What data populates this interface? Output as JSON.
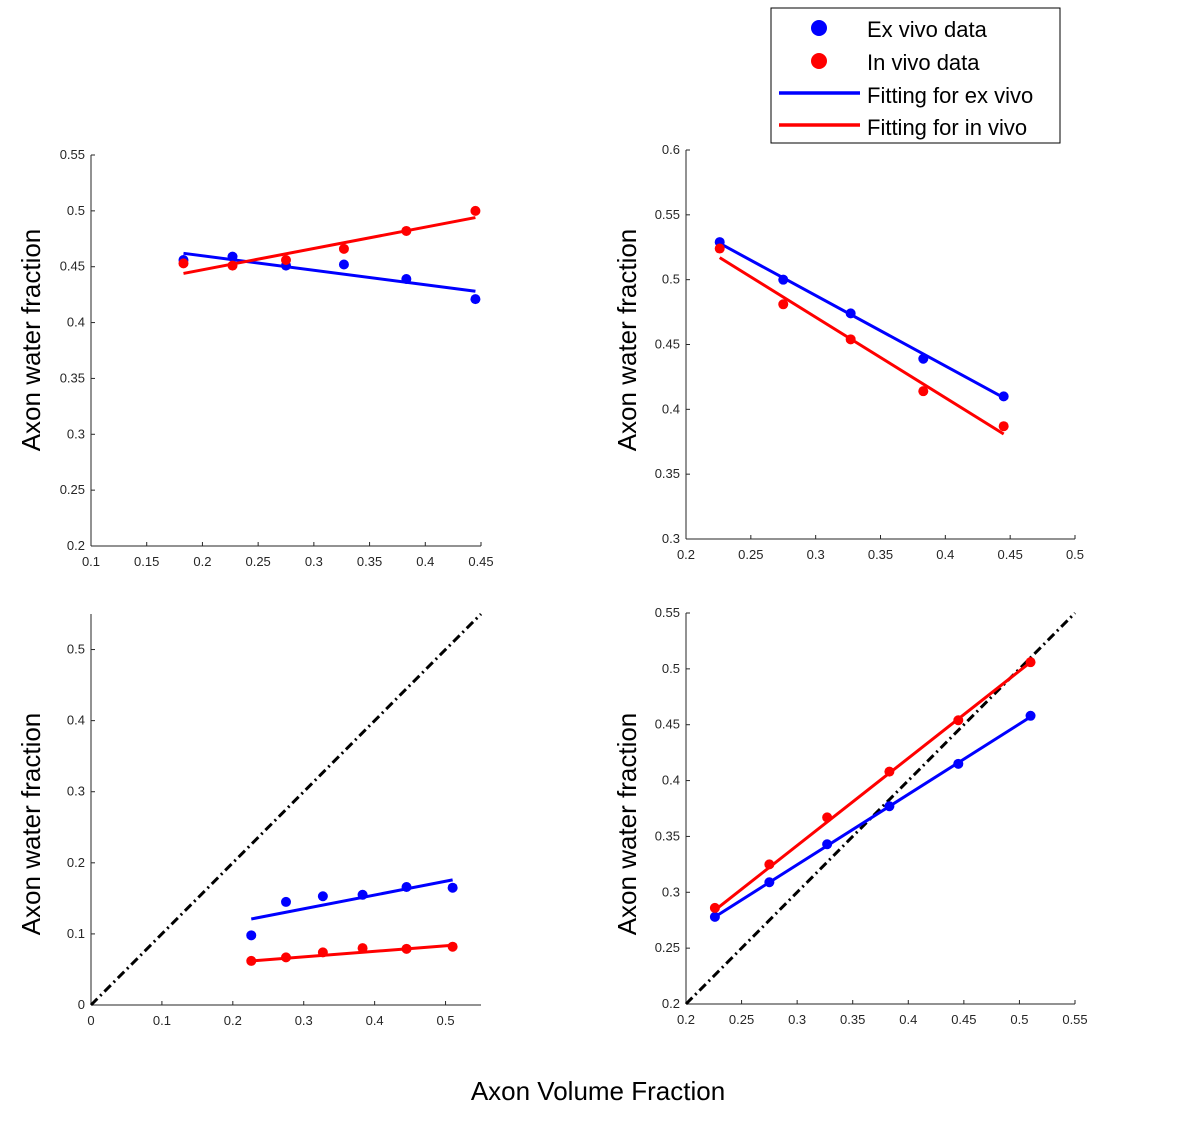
{
  "figure": {
    "xlabel": "Axon Volume Fraction"
  },
  "legend": {
    "entries": [
      {
        "label": "Ex vivo data",
        "kind": "marker",
        "color": "#0000ff"
      },
      {
        "label": "In vivo data",
        "kind": "marker",
        "color": "#ff0000"
      },
      {
        "label": "Fitting for ex vivo",
        "kind": "line",
        "color": "#0000ff"
      },
      {
        "label": "Fitting for in vivo",
        "kind": "line",
        "color": "#ff0000"
      }
    ]
  },
  "colors": {
    "ex_vivo": "#0000ff",
    "in_vivo": "#ff0000",
    "identity": "#000000",
    "axis": "#262626"
  },
  "chart_data": [
    {
      "type": "scatter",
      "panel": "top-left",
      "ylabel": "Axon water fraction",
      "xlim": [
        0.1,
        0.45
      ],
      "ylim": [
        0.2,
        0.55
      ],
      "xticks": [
        "0.1",
        "0.15",
        "0.2",
        "0.25",
        "0.3",
        "0.35",
        "0.4",
        "0.45"
      ],
      "yticks": [
        "0.2",
        "0.25",
        "0.3",
        "0.35",
        "0.4",
        "0.45",
        "0.5",
        "0.55"
      ],
      "series": [
        {
          "name": "Ex vivo data",
          "kind": "points",
          "color": "#0000ff",
          "x": [
            0.183,
            0.227,
            0.275,
            0.327,
            0.383,
            0.445
          ],
          "y": [
            0.456,
            0.459,
            0.451,
            0.452,
            0.439,
            0.421
          ]
        },
        {
          "name": "In vivo data",
          "kind": "points",
          "color": "#ff0000",
          "x": [
            0.183,
            0.227,
            0.275,
            0.327,
            0.383,
            0.445
          ],
          "y": [
            0.453,
            0.451,
            0.456,
            0.466,
            0.482,
            0.5
          ]
        },
        {
          "name": "Fitting for ex vivo",
          "kind": "line",
          "color": "#0000ff",
          "x": [
            0.183,
            0.445
          ],
          "y": [
            0.462,
            0.428
          ]
        },
        {
          "name": "Fitting for in vivo",
          "kind": "line",
          "color": "#ff0000",
          "x": [
            0.183,
            0.445
          ],
          "y": [
            0.444,
            0.494
          ]
        }
      ]
    },
    {
      "type": "scatter",
      "panel": "top-right",
      "ylabel": "Axon water fraction",
      "xlim": [
        0.2,
        0.5
      ],
      "ylim": [
        0.3,
        0.6
      ],
      "xticks": [
        "0.2",
        "0.25",
        "0.3",
        "0.35",
        "0.4",
        "0.45",
        "0.5"
      ],
      "yticks": [
        "0.3",
        "0.35",
        "0.4",
        "0.45",
        "0.5",
        "0.55",
        "0.6"
      ],
      "series": [
        {
          "name": "Ex vivo data",
          "kind": "points",
          "color": "#0000ff",
          "x": [
            0.226,
            0.275,
            0.327,
            0.383,
            0.445
          ],
          "y": [
            0.529,
            0.5,
            0.474,
            0.439,
            0.41
          ]
        },
        {
          "name": "In vivo data",
          "kind": "points",
          "color": "#ff0000",
          "x": [
            0.226,
            0.275,
            0.327,
            0.383,
            0.445
          ],
          "y": [
            0.524,
            0.481,
            0.454,
            0.414,
            0.387
          ]
        },
        {
          "name": "Fitting for ex vivo",
          "kind": "line",
          "color": "#0000ff",
          "x": [
            0.226,
            0.445
          ],
          "y": [
            0.528,
            0.409
          ]
        },
        {
          "name": "Fitting for in vivo",
          "kind": "line",
          "color": "#ff0000",
          "x": [
            0.226,
            0.445
          ],
          "y": [
            0.517,
            0.381
          ]
        }
      ]
    },
    {
      "type": "scatter",
      "panel": "bottom-left",
      "ylabel": "Axon water fraction",
      "xlim": [
        0,
        0.55
      ],
      "ylim": [
        0,
        0.55
      ],
      "xticks": [
        "0",
        "0.1",
        "0.2",
        "0.3",
        "0.4",
        "0.5"
      ],
      "yticks": [
        "0",
        "0.1",
        "0.2",
        "0.3",
        "0.4",
        "0.5"
      ],
      "series": [
        {
          "name": "Identity line",
          "kind": "identity",
          "color": "#000000",
          "x": [
            0,
            0.55
          ],
          "y": [
            0,
            0.55
          ]
        },
        {
          "name": "Ex vivo data",
          "kind": "points",
          "color": "#0000ff",
          "x": [
            0.226,
            0.275,
            0.327,
            0.383,
            0.445,
            0.51
          ],
          "y": [
            0.098,
            0.145,
            0.153,
            0.155,
            0.166,
            0.165
          ]
        },
        {
          "name": "In vivo data",
          "kind": "points",
          "color": "#ff0000",
          "x": [
            0.226,
            0.275,
            0.327,
            0.383,
            0.445,
            0.51
          ],
          "y": [
            0.062,
            0.067,
            0.074,
            0.08,
            0.079,
            0.082
          ]
        },
        {
          "name": "Fitting for ex vivo",
          "kind": "line",
          "color": "#0000ff",
          "x": [
            0.226,
            0.51
          ],
          "y": [
            0.121,
            0.176
          ]
        },
        {
          "name": "Fitting for in vivo",
          "kind": "line",
          "color": "#ff0000",
          "x": [
            0.226,
            0.51
          ],
          "y": [
            0.062,
            0.084
          ]
        }
      ]
    },
    {
      "type": "scatter",
      "panel": "bottom-right",
      "ylabel": "Axon water fraction",
      "xlim": [
        0.2,
        0.55
      ],
      "ylim": [
        0.2,
        0.55
      ],
      "xticks": [
        "0.2",
        "0.25",
        "0.3",
        "0.35",
        "0.4",
        "0.45",
        "0.5",
        "0.55"
      ],
      "yticks": [
        "0.2",
        "0.25",
        "0.3",
        "0.35",
        "0.4",
        "0.45",
        "0.5",
        "0.55"
      ],
      "series": [
        {
          "name": "Identity line",
          "kind": "identity",
          "color": "#000000",
          "x": [
            0.2,
            0.55
          ],
          "y": [
            0.2,
            0.55
          ]
        },
        {
          "name": "Ex vivo data",
          "kind": "points",
          "color": "#0000ff",
          "x": [
            0.226,
            0.275,
            0.327,
            0.383,
            0.445,
            0.51
          ],
          "y": [
            0.278,
            0.309,
            0.343,
            0.377,
            0.415,
            0.458
          ]
        },
        {
          "name": "In vivo data",
          "kind": "points",
          "color": "#ff0000",
          "x": [
            0.226,
            0.275,
            0.327,
            0.383,
            0.445,
            0.51
          ],
          "y": [
            0.286,
            0.325,
            0.367,
            0.408,
            0.454,
            0.506
          ]
        },
        {
          "name": "Fitting for ex vivo",
          "kind": "line",
          "color": "#0000ff",
          "x": [
            0.226,
            0.51
          ],
          "y": [
            0.278,
            0.457
          ]
        },
        {
          "name": "Fitting for in vivo",
          "kind": "line",
          "color": "#ff0000",
          "x": [
            0.226,
            0.51
          ],
          "y": [
            0.284,
            0.506
          ]
        }
      ]
    }
  ]
}
